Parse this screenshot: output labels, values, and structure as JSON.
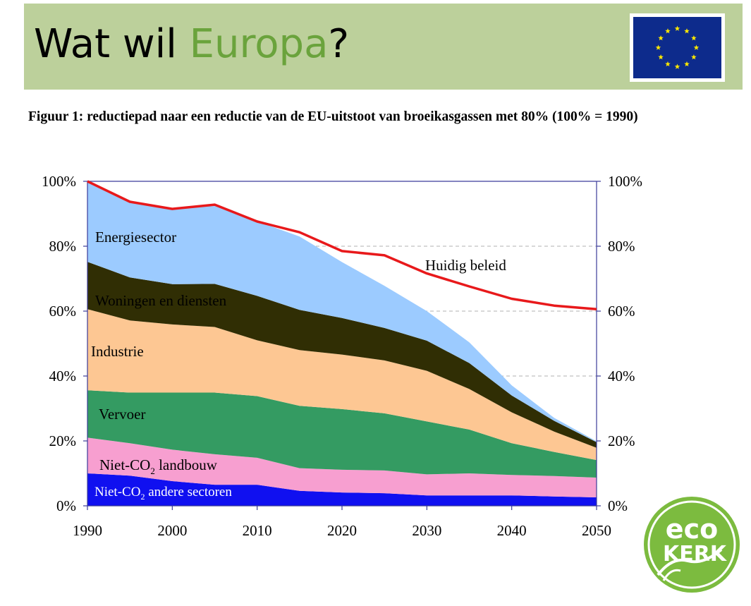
{
  "header": {
    "title_part1": "Wat wil ",
    "title_accent": "Europa",
    "title_end": "?",
    "background": "#bcd09b",
    "accent_color": "#6aa33c",
    "flag_icon": "eu-flag-icon"
  },
  "caption": "Figuur 1: reductiepad naar een reductie van de EU-uitstoot van broeikasgassen met 80% (100% = 1990)",
  "chart_data": {
    "type": "area",
    "stacked": true,
    "x": [
      1990,
      1995,
      2000,
      2005,
      2010,
      2015,
      2020,
      2025,
      2030,
      2035,
      2040,
      2045,
      2050
    ],
    "xlim": [
      1990,
      2050
    ],
    "ylim": [
      0,
      100
    ],
    "x_ticks": [
      "1990",
      "2000",
      "2010",
      "2020",
      "2030",
      "2040",
      "2050"
    ],
    "y_ticks": [
      "0%",
      "20%",
      "40%",
      "60%",
      "80%",
      "100%"
    ],
    "right_axis_ticks": [
      "0%",
      "20%",
      "40%",
      "60%",
      "80%",
      "100%"
    ],
    "grid": "dashed at 40%, 60% and 80% to the right of the stack",
    "series": [
      {
        "name": "Niet-CO₂ andere sectoren",
        "color": "#1010f0",
        "values": [
          10,
          9.3,
          7.6,
          6.5,
          6.5,
          4.6,
          4.1,
          3.9,
          3.2,
          3.2,
          3.2,
          2.9,
          2.6
        ]
      },
      {
        "name": "Niet-CO₂ landbouw",
        "color": "#f79fd0",
        "values": [
          11,
          10,
          9.7,
          9.4,
          8.3,
          7,
          7,
          7,
          6.5,
          6.8,
          6.3,
          6.3,
          6.1
        ]
      },
      {
        "name": "Vervoer",
        "color": "#349b62",
        "values": [
          14.6,
          15.6,
          17.6,
          19,
          19,
          19.2,
          18.7,
          17.6,
          16.3,
          13.5,
          9.8,
          7.4,
          5.4
        ]
      },
      {
        "name": "Industrie",
        "color": "#fdc793",
        "values": [
          25,
          22.2,
          21,
          20.2,
          17.2,
          17.2,
          16.8,
          16.3,
          15.6,
          12.5,
          9.5,
          6.3,
          3.8
        ]
      },
      {
        "name": "Woningen en diensten",
        "color": "#302e04",
        "values": [
          14.6,
          13.3,
          12.4,
          13.3,
          13.7,
          12.4,
          11.3,
          10,
          9.3,
          8,
          5.2,
          3.3,
          1.7
        ]
      },
      {
        "name": "Energiesector",
        "color": "#9ccbff",
        "values": [
          24.8,
          23.6,
          23.3,
          24,
          23,
          22.6,
          17.2,
          13,
          9.1,
          6.4,
          3.1,
          0.9,
          0.3
        ]
      }
    ],
    "line": {
      "name": "Huidig beleid",
      "color": "#e8191b",
      "values": [
        100,
        93.7,
        91.5,
        92.8,
        87.6,
        84.3,
        78.5,
        77.2,
        71.6,
        67.6,
        63.8,
        61.7,
        60.6
      ]
    },
    "labels": {
      "energie": "Energiesector",
      "woningen": "Woningen en diensten",
      "industrie": "Industrie",
      "vervoer": "Vervoer",
      "landbouw_pre": "Niet-CO",
      "landbouw_sub": "2",
      "landbouw_post": " landbouw",
      "andere_pre": "Niet-CO",
      "andere_sub": "2",
      "andere_post": " andere sectoren",
      "beleid": "Huidig beleid"
    }
  },
  "footer": {
    "logo_line1": "eco",
    "logo_line2": "KERK",
    "logo_color": "#7cbb3f"
  }
}
